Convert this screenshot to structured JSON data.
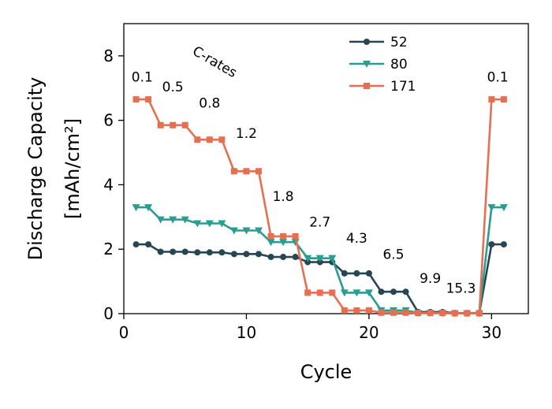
{
  "chart_data": {
    "type": "line",
    "xlabel": "Cycle",
    "ylabel_lines": [
      "Discharge Capacity",
      "[mAh/cm²]"
    ],
    "xlim": [
      0,
      33
    ],
    "ylim": [
      0,
      9
    ],
    "xticks": [
      0,
      10,
      20,
      30
    ],
    "yticks": [
      0,
      2,
      4,
      6,
      8
    ],
    "grid": false,
    "legend_position": "top-center",
    "crate_heading": "C-rates",
    "crate_labels": [
      {
        "text": "0.1",
        "x": 1.5,
        "y": 7.2
      },
      {
        "text": "0.5",
        "x": 4.0,
        "y": 6.9
      },
      {
        "text": "0.8",
        "x": 7.0,
        "y": 6.4
      },
      {
        "text": "1.2",
        "x": 10.0,
        "y": 5.45
      },
      {
        "text": "1.8",
        "x": 13.0,
        "y": 3.5
      },
      {
        "text": "2.7",
        "x": 16.0,
        "y": 2.7
      },
      {
        "text": "4.3",
        "x": 19.0,
        "y": 2.2
      },
      {
        "text": "6.5",
        "x": 22.0,
        "y": 1.7
      },
      {
        "text": "9.9",
        "x": 25.0,
        "y": 0.95
      },
      {
        "text": "15.3",
        "x": 27.5,
        "y": 0.65
      },
      {
        "text": "0.1",
        "x": 30.5,
        "y": 7.2
      }
    ],
    "series": [
      {
        "name": "52",
        "color": "#264653",
        "marker": "circle",
        "x": [
          1,
          2,
          3,
          4,
          5,
          6,
          7,
          8,
          9,
          10,
          11,
          12,
          13,
          14,
          15,
          16,
          17,
          18,
          19,
          20,
          21,
          22,
          23,
          24,
          25,
          26,
          27,
          28,
          29,
          30,
          31
        ],
        "values": [
          2.15,
          2.15,
          1.92,
          1.92,
          1.92,
          1.9,
          1.9,
          1.9,
          1.85,
          1.85,
          1.85,
          1.76,
          1.76,
          1.76,
          1.6,
          1.6,
          1.6,
          1.25,
          1.25,
          1.25,
          0.68,
          0.68,
          0.68,
          0.05,
          0.05,
          0.05,
          0.02,
          0.02,
          0.02,
          2.15,
          2.15
        ]
      },
      {
        "name": "80",
        "color": "#2a9d8f",
        "marker": "triangle-down",
        "x": [
          1,
          2,
          3,
          4,
          5,
          6,
          7,
          8,
          9,
          10,
          11,
          12,
          13,
          14,
          15,
          16,
          17,
          18,
          19,
          20,
          21,
          22,
          23,
          24,
          25,
          26,
          27,
          28,
          29,
          30,
          31
        ],
        "values": [
          3.3,
          3.3,
          2.92,
          2.92,
          2.92,
          2.8,
          2.8,
          2.8,
          2.58,
          2.58,
          2.58,
          2.22,
          2.22,
          2.22,
          1.72,
          1.72,
          1.72,
          0.65,
          0.65,
          0.65,
          0.1,
          0.1,
          0.1,
          0.02,
          0.02,
          0.02,
          0.01,
          0.01,
          0.01,
          3.3,
          3.3
        ]
      },
      {
        "name": "171",
        "color": "#e76f51",
        "marker": "square",
        "x": [
          1,
          2,
          3,
          4,
          5,
          6,
          7,
          8,
          9,
          10,
          11,
          12,
          13,
          14,
          15,
          16,
          17,
          18,
          19,
          20,
          21,
          22,
          23,
          24,
          25,
          26,
          27,
          28,
          29,
          30,
          31
        ],
        "values": [
          6.65,
          6.65,
          5.85,
          5.85,
          5.85,
          5.4,
          5.4,
          5.4,
          4.42,
          4.42,
          4.42,
          2.4,
          2.4,
          2.4,
          0.65,
          0.65,
          0.65,
          0.1,
          0.1,
          0.1,
          0.03,
          0.03,
          0.03,
          0.02,
          0.02,
          0.02,
          0.01,
          0.01,
          0.01,
          6.65,
          6.65
        ]
      }
    ]
  }
}
